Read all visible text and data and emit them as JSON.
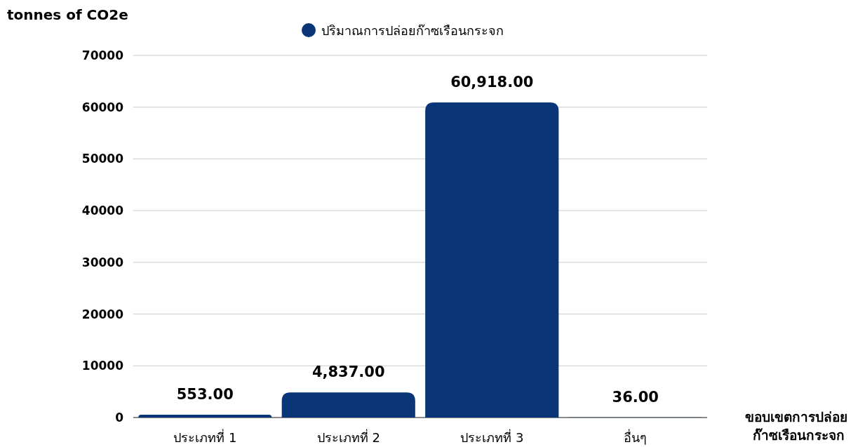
{
  "chart_data": {
    "type": "bar",
    "ylabel": "tonnes of CO2e",
    "xlabel": "ขอบเขตการปล่อย ก๊าซเรือนกระจก",
    "categories": [
      "ประเภทที่ 1",
      "ประเภทที่ 2",
      "ประเภทที่ 3",
      "อื่นๆ"
    ],
    "series": [
      {
        "name": "ปริมาณการปล่อยก๊าซเรือนกระจก",
        "color": "#0a3678",
        "values": [
          553,
          4837,
          60918,
          36
        ],
        "value_labels": [
          "553.00",
          "4,837.00",
          "60,918.00",
          "36.00"
        ]
      }
    ],
    "ylim": [
      0,
      70000
    ],
    "yticks": [
      0,
      10000,
      20000,
      30000,
      40000,
      50000,
      60000,
      70000
    ],
    "grid": "y",
    "legend": "top"
  }
}
